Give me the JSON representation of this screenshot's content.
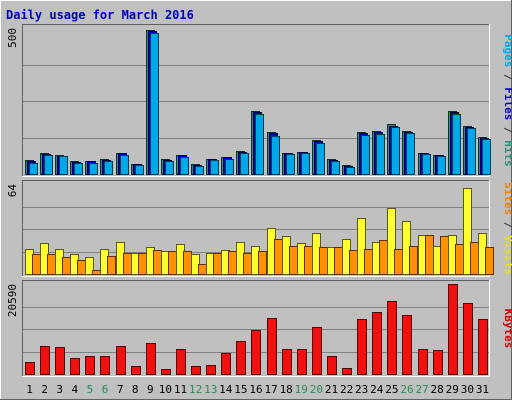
{
  "chart_data": {
    "type": "bar",
    "title": "Daily usage for March 2016",
    "days": [
      "1",
      "2",
      "3",
      "4",
      "5",
      "6",
      "7",
      "8",
      "9",
      "10",
      "11",
      "12",
      "13",
      "14",
      "15",
      "16",
      "17",
      "18",
      "19",
      "20",
      "21",
      "22",
      "23",
      "24",
      "25",
      "26",
      "27",
      "28",
      "29",
      "30",
      "31"
    ],
    "weekend_days": [
      5,
      6,
      12,
      13,
      19,
      20,
      26,
      27
    ],
    "panels": [
      {
        "id": "hits",
        "max_label": "500",
        "ymax": 512,
        "axis_labels": [
          {
            "text": "Pages",
            "color": "#00a8e8"
          },
          {
            "text": " / ",
            "color": "#333333"
          },
          {
            "text": "Files",
            "color": "#0000c8"
          },
          {
            "text": " / ",
            "color": "#333333"
          },
          {
            "text": "Hits",
            "color": "#2f8f7f"
          }
        ],
        "series": [
          {
            "name": "Hits",
            "color": "#2e8b7f",
            "values": [
              48,
              72,
              66,
              45,
              46,
              52,
              74,
              36,
              504,
              52,
              68,
              34,
              54,
              60,
              80,
              222,
              148,
              75,
              78,
              118,
              52,
              30,
              146,
              152,
              175,
              150,
              75,
              68,
              220,
              168,
              130
            ]
          },
          {
            "name": "Files",
            "color": "#0000c8",
            "values": [
              46,
              70,
              64,
              43,
              44,
              50,
              72,
              34,
              500,
              50,
              66,
              32,
              52,
              58,
              78,
              218,
              144,
              73,
              76,
              115,
              50,
              28,
              143,
              148,
              170,
              147,
              73,
              66,
              216,
              164,
              127
            ]
          },
          {
            "name": "Pages",
            "color": "#00a8e8",
            "values": [
              40,
              66,
              62,
              40,
              40,
              46,
              68,
              30,
              494,
              46,
              60,
              28,
              48,
              54,
              74,
              210,
              132,
              70,
              72,
              110,
              46,
              25,
              136,
              140,
              166,
              144,
              70,
              63,
              210,
              160,
              122
            ]
          }
        ]
      },
      {
        "id": "visits",
        "max_label": "64",
        "ymax": 64,
        "axis_labels": [
          {
            "text": "Sites",
            "color": "#f08000"
          },
          {
            "text": " / ",
            "color": "#333333"
          },
          {
            "text": "Visits",
            "color": "#e8e020"
          }
        ],
        "series": [
          {
            "name": "Visits",
            "color": "#ffff30",
            "values": [
              18,
              22,
              18,
              14,
              12,
              18,
              23,
              15,
              19,
              16,
              21,
              14,
              15,
              17,
              23,
              20,
              33,
              27,
              22,
              29,
              19,
              25,
              40,
              23,
              47,
              38,
              28,
              20,
              28,
              61,
              29
            ]
          },
          {
            "name": "Sites",
            "color": "#ff9000",
            "values": [
              14,
              14,
              12,
              10,
              3,
              13,
              15,
              15,
              17,
              16,
              16,
              7,
              15,
              16,
              15,
              16,
              25,
              20,
              20,
              19,
              19,
              17,
              18,
              24,
              18,
              20,
              28,
              27,
              21,
              23,
              19
            ]
          }
        ]
      },
      {
        "id": "kbytes",
        "max_label": "20590",
        "ymax": 20590,
        "axis_labels": [
          {
            "text": "KBytes",
            "color": "#d40000"
          }
        ],
        "series": [
          {
            "name": "KBytes",
            "color": "#f01010",
            "values": [
              2800,
              6500,
              6200,
              3600,
              4100,
              4100,
              6500,
              1800,
              7100,
              1200,
              5800,
              1800,
              2100,
              4700,
              7600,
              10000,
              12900,
              5700,
              5700,
              10800,
              4100,
              1300,
              12600,
              14200,
              16800,
              13600,
              5700,
              5500,
              20590,
              16200,
              12500
            ]
          }
        ]
      }
    ]
  }
}
